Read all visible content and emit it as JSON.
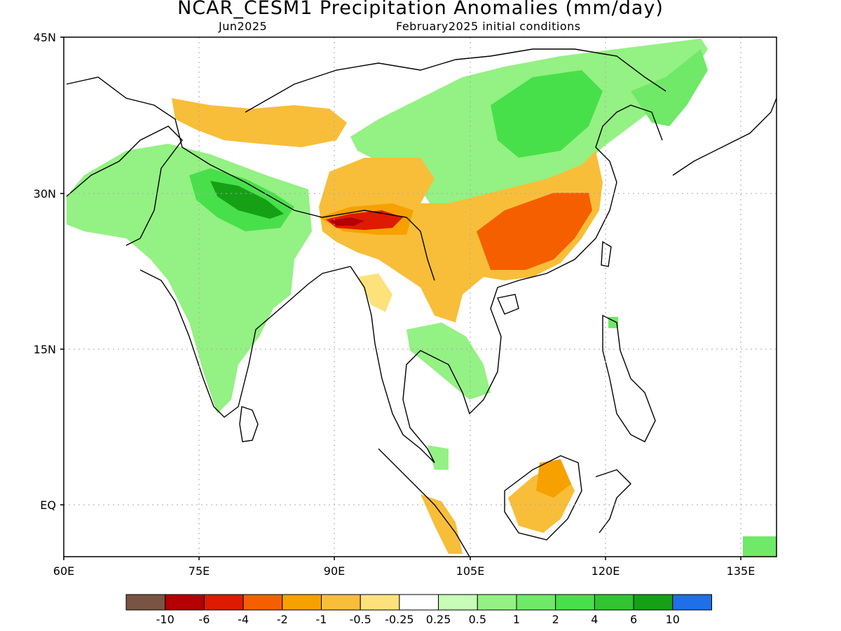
{
  "title": "NCAR_CESM1 Precipitation Anomalies (mm/day)",
  "subtitle_left": "Jun2025",
  "subtitle_right": "February2025 initial conditions",
  "map": {
    "lat_labels": [
      "45N",
      "30N",
      "15N",
      "EQ"
    ],
    "lon_labels": [
      "60E",
      "75E",
      "90E",
      "105E",
      "120E",
      "135E"
    ]
  },
  "colorbar": {
    "colors": [
      "#7a5443",
      "#b40000",
      "#de1b00",
      "#f55f00",
      "#f7a100",
      "#f8be39",
      "#fde27b",
      "#ffffff",
      "#c6fdb7",
      "#94f183",
      "#70e868",
      "#48e04a",
      "#32c431",
      "#16a016",
      "#1f6fe8"
    ],
    "labels": [
      "-10",
      "-6",
      "-4",
      "-2",
      "-1",
      "-0.5",
      "-0.25",
      "0.25",
      "0.5",
      "1",
      "2",
      "4",
      "6",
      "10"
    ]
  }
}
